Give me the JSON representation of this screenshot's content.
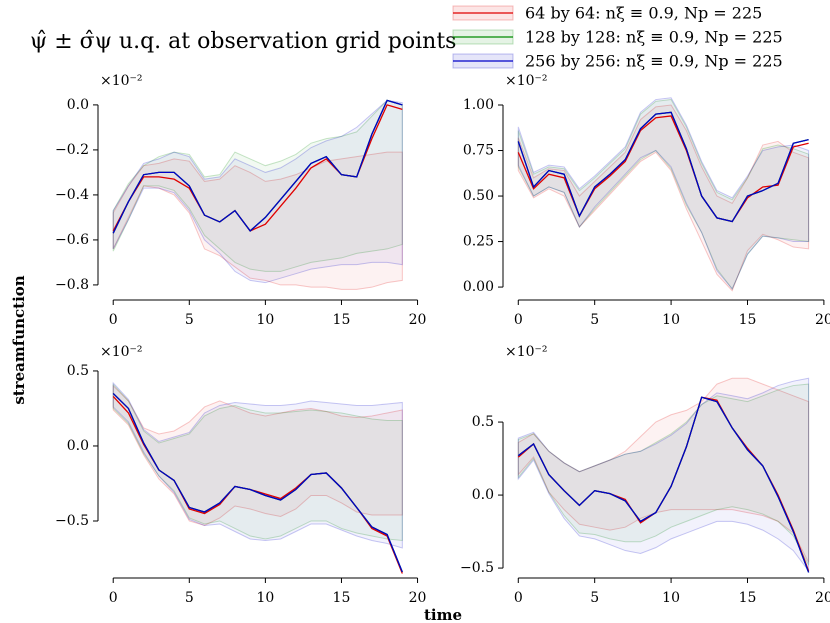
{
  "title": "ψ̂ ± σ̂ψ u.q. at observation grid points",
  "ylabel": "streamfunction",
  "xlabel": "time",
  "legend": [
    "64 by 64: nξ ≡ 0.9, Np = 225",
    "128 by 128: nξ ≡ 0.9, Np = 225",
    "256 by 256: nξ ≡ 0.9, Np = 225"
  ],
  "chart_data": [
    {
      "type": "line",
      "offset_label": "×10⁻²",
      "x": [
        0,
        1,
        2,
        3,
        4,
        5,
        6,
        7,
        8,
        9,
        10,
        11,
        12,
        13,
        14,
        15,
        16,
        17,
        18,
        19
      ],
      "xlim": [
        -1,
        20.95
      ],
      "xticks": [
        0,
        5,
        10,
        15,
        20
      ],
      "ylim": [
        -0.867,
        0.044
      ],
      "yticks": [
        {
          "value": 0.0,
          "label": "0.0"
        },
        {
          "value": -0.2,
          "label": "−0.2"
        },
        {
          "value": -0.4,
          "label": "−0.4"
        },
        {
          "value": -0.6,
          "label": "−0.6"
        },
        {
          "value": -0.8,
          "label": "−0.8"
        }
      ],
      "series": [
        {
          "color": "#e00000",
          "values": [
            -0.56,
            -0.43,
            -0.32,
            -0.32,
            -0.33,
            -0.37,
            -0.49,
            -0.52,
            -0.47,
            -0.56,
            -0.53,
            -0.45,
            -0.37,
            -0.28,
            -0.24,
            -0.31,
            -0.32,
            -0.15,
            0.0,
            -0.02
          ],
          "upper": [
            -0.48,
            -0.36,
            -0.27,
            -0.26,
            -0.24,
            -0.25,
            -0.34,
            -0.33,
            -0.27,
            -0.3,
            -0.34,
            -0.33,
            -0.31,
            -0.28,
            -0.25,
            -0.24,
            -0.23,
            -0.22,
            -0.21,
            -0.21
          ],
          "lower": [
            -0.64,
            -0.5,
            -0.36,
            -0.37,
            -0.4,
            -0.48,
            -0.64,
            -0.67,
            -0.72,
            -0.77,
            -0.78,
            -0.8,
            -0.8,
            -0.81,
            -0.81,
            -0.82,
            -0.82,
            -0.81,
            -0.79,
            -0.78
          ]
        },
        {
          "color": "#008a00",
          "values": [
            -0.57,
            -0.43,
            -0.31,
            -0.3,
            -0.3,
            -0.36,
            -0.49,
            -0.52,
            -0.47,
            -0.56,
            -0.5,
            -0.42,
            -0.34,
            -0.26,
            -0.23,
            -0.31,
            -0.32,
            -0.13,
            0.02,
            0.0
          ],
          "upper": [
            -0.47,
            -0.35,
            -0.27,
            -0.23,
            -0.21,
            -0.22,
            -0.32,
            -0.31,
            -0.21,
            -0.24,
            -0.27,
            -0.25,
            -0.22,
            -0.17,
            -0.15,
            -0.14,
            -0.12,
            -0.05,
            0.02,
            0.0
          ],
          "lower": [
            -0.65,
            -0.51,
            -0.36,
            -0.36,
            -0.38,
            -0.46,
            -0.58,
            -0.64,
            -0.7,
            -0.73,
            -0.74,
            -0.74,
            -0.72,
            -0.7,
            -0.69,
            -0.68,
            -0.66,
            -0.65,
            -0.64,
            -0.62
          ]
        },
        {
          "color": "#0000c8",
          "values": [
            -0.57,
            -0.43,
            -0.31,
            -0.3,
            -0.3,
            -0.36,
            -0.49,
            -0.52,
            -0.47,
            -0.56,
            -0.5,
            -0.42,
            -0.34,
            -0.26,
            -0.23,
            -0.31,
            -0.32,
            -0.13,
            0.02,
            0.0
          ],
          "upper": [
            -0.47,
            -0.36,
            -0.26,
            -0.24,
            -0.21,
            -0.23,
            -0.33,
            -0.32,
            -0.24,
            -0.27,
            -0.3,
            -0.28,
            -0.24,
            -0.19,
            -0.16,
            -0.14,
            -0.1,
            -0.04,
            0.02,
            0.01
          ],
          "lower": [
            -0.64,
            -0.51,
            -0.37,
            -0.37,
            -0.39,
            -0.47,
            -0.6,
            -0.66,
            -0.74,
            -0.78,
            -0.79,
            -0.77,
            -0.75,
            -0.73,
            -0.72,
            -0.71,
            -0.71,
            -0.7,
            -0.7,
            -0.71
          ]
        }
      ]
    },
    {
      "type": "line",
      "offset_label": "×10⁻²",
      "x": [
        0,
        1,
        2,
        3,
        4,
        5,
        6,
        7,
        8,
        9,
        10,
        11,
        12,
        13,
        14,
        15,
        16,
        17,
        18,
        19
      ],
      "xlim": [
        -1,
        20.4
      ],
      "xticks": [
        0,
        5,
        10,
        15,
        20
      ],
      "ylim": [
        -0.071,
        1.055
      ],
      "yticks": [
        {
          "value": 0.0,
          "label": "0.00"
        },
        {
          "value": 0.25,
          "label": "0.25"
        },
        {
          "value": 0.5,
          "label": "0.50"
        },
        {
          "value": 0.75,
          "label": "0.75"
        },
        {
          "value": 1.0,
          "label": "1.00"
        }
      ],
      "series": [
        {
          "color": "#e00000",
          "values": [
            0.74,
            0.54,
            0.62,
            0.6,
            0.39,
            0.54,
            0.61,
            0.69,
            0.86,
            0.93,
            0.94,
            0.75,
            0.5,
            0.38,
            0.36,
            0.49,
            0.55,
            0.56,
            0.77,
            0.79
          ],
          "upper": [
            0.82,
            0.6,
            0.65,
            0.64,
            0.5,
            0.58,
            0.66,
            0.74,
            0.92,
            0.99,
            1.0,
            0.86,
            0.66,
            0.5,
            0.46,
            0.6,
            0.78,
            0.8,
            0.74,
            0.71
          ],
          "lower": [
            0.64,
            0.49,
            0.54,
            0.5,
            0.33,
            0.42,
            0.51,
            0.6,
            0.69,
            0.74,
            0.64,
            0.43,
            0.25,
            0.07,
            -0.02,
            0.2,
            0.29,
            0.26,
            0.22,
            0.21
          ]
        },
        {
          "color": "#008a00",
          "values": [
            0.8,
            0.55,
            0.64,
            0.62,
            0.39,
            0.55,
            0.62,
            0.7,
            0.87,
            0.95,
            0.96,
            0.76,
            0.5,
            0.38,
            0.36,
            0.5,
            0.53,
            0.57,
            0.79,
            0.81
          ],
          "upper": [
            0.86,
            0.62,
            0.66,
            0.65,
            0.53,
            0.6,
            0.68,
            0.76,
            0.95,
            1.02,
            1.03,
            0.88,
            0.68,
            0.52,
            0.48,
            0.6,
            0.76,
            0.78,
            0.76,
            0.73
          ],
          "lower": [
            0.66,
            0.5,
            0.55,
            0.52,
            0.33,
            0.43,
            0.52,
            0.61,
            0.7,
            0.75,
            0.65,
            0.45,
            0.3,
            0.1,
            -0.01,
            0.18,
            0.28,
            0.27,
            0.26,
            0.25
          ]
        },
        {
          "color": "#0000c8",
          "values": [
            0.8,
            0.55,
            0.64,
            0.62,
            0.39,
            0.55,
            0.62,
            0.7,
            0.87,
            0.95,
            0.96,
            0.76,
            0.5,
            0.38,
            0.36,
            0.5,
            0.53,
            0.57,
            0.79,
            0.81
          ],
          "upper": [
            0.88,
            0.63,
            0.67,
            0.66,
            0.54,
            0.61,
            0.69,
            0.77,
            0.96,
            1.03,
            1.04,
            0.89,
            0.69,
            0.53,
            0.49,
            0.61,
            0.75,
            0.77,
            0.78,
            0.75
          ],
          "lower": [
            0.67,
            0.5,
            0.55,
            0.52,
            0.33,
            0.44,
            0.53,
            0.62,
            0.71,
            0.75,
            0.66,
            0.46,
            0.3,
            0.09,
            -0.01,
            0.18,
            0.28,
            0.27,
            0.25,
            0.25
          ]
        }
      ]
    },
    {
      "type": "line",
      "offset_label": "×10⁻²",
      "x": [
        0,
        1,
        2,
        3,
        4,
        5,
        6,
        7,
        8,
        9,
        10,
        11,
        12,
        13,
        14,
        15,
        16,
        17,
        18,
        19
      ],
      "xlim": [
        -1,
        20.95
      ],
      "xticks": [
        0,
        5,
        10,
        15,
        20
      ],
      "ylim": [
        -0.88,
        0.533
      ],
      "yticks": [
        {
          "value": 0.5,
          "label": "0.5"
        },
        {
          "value": 0.0,
          "label": "0.0"
        },
        {
          "value": -0.5,
          "label": "−0.5"
        }
      ],
      "series": [
        {
          "color": "#e00000",
          "values": [
            0.33,
            0.22,
            0.01,
            -0.16,
            -0.23,
            -0.42,
            -0.45,
            -0.39,
            -0.27,
            -0.29,
            -0.32,
            -0.35,
            -0.28,
            -0.19,
            -0.18,
            -0.28,
            -0.41,
            -0.55,
            -0.6,
            -0.85
          ],
          "upper": [
            0.4,
            0.3,
            0.12,
            0.08,
            0.1,
            0.16,
            0.26,
            0.3,
            0.26,
            0.22,
            0.2,
            0.22,
            0.24,
            0.25,
            0.23,
            0.2,
            0.19,
            0.2,
            0.22,
            0.24
          ],
          "lower": [
            0.24,
            0.14,
            -0.06,
            -0.22,
            -0.32,
            -0.5,
            -0.53,
            -0.48,
            -0.4,
            -0.42,
            -0.45,
            -0.47,
            -0.42,
            -0.33,
            -0.33,
            -0.38,
            -0.44,
            -0.46,
            -0.46,
            -0.46
          ]
        },
        {
          "color": "#008a00",
          "values": [
            0.35,
            0.25,
            0.02,
            -0.16,
            -0.23,
            -0.41,
            -0.44,
            -0.38,
            -0.27,
            -0.29,
            -0.33,
            -0.36,
            -0.29,
            -0.19,
            -0.18,
            -0.28,
            -0.41,
            -0.54,
            -0.59,
            -0.84
          ],
          "upper": [
            0.41,
            0.3,
            0.1,
            0.02,
            0.05,
            0.08,
            0.2,
            0.25,
            0.27,
            0.24,
            0.22,
            0.22,
            0.23,
            0.24,
            0.23,
            0.22,
            0.2,
            0.18,
            0.17,
            0.17
          ],
          "lower": [
            0.25,
            0.15,
            -0.05,
            -0.2,
            -0.3,
            -0.48,
            -0.52,
            -0.5,
            -0.55,
            -0.6,
            -0.62,
            -0.6,
            -0.55,
            -0.5,
            -0.5,
            -0.55,
            -0.58,
            -0.6,
            -0.62,
            -0.63
          ]
        },
        {
          "color": "#0000c8",
          "values": [
            0.35,
            0.25,
            0.02,
            -0.16,
            -0.23,
            -0.41,
            -0.44,
            -0.38,
            -0.27,
            -0.29,
            -0.33,
            -0.36,
            -0.29,
            -0.19,
            -0.18,
            -0.28,
            -0.41,
            -0.54,
            -0.59,
            -0.84
          ],
          "upper": [
            0.42,
            0.31,
            0.11,
            0.03,
            0.06,
            0.09,
            0.22,
            0.27,
            0.29,
            0.28,
            0.27,
            0.27,
            0.28,
            0.3,
            0.29,
            0.28,
            0.27,
            0.27,
            0.28,
            0.29
          ],
          "lower": [
            0.26,
            0.16,
            -0.04,
            -0.2,
            -0.31,
            -0.49,
            -0.53,
            -0.52,
            -0.57,
            -0.62,
            -0.63,
            -0.62,
            -0.57,
            -0.52,
            -0.52,
            -0.56,
            -0.6,
            -0.63,
            -0.65,
            -0.68
          ]
        }
      ]
    },
    {
      "type": "line",
      "offset_label": "×10⁻²",
      "x": [
        0,
        1,
        2,
        3,
        4,
        5,
        6,
        7,
        8,
        9,
        10,
        11,
        12,
        13,
        14,
        15,
        16,
        17,
        18,
        19
      ],
      "xlim": [
        -1,
        20.4
      ],
      "xticks": [
        0,
        5,
        10,
        15,
        20
      ],
      "ylim": [
        -0.568,
        0.884
      ],
      "yticks": [
        {
          "value": 0.5,
          "label": "0.5"
        },
        {
          "value": 0.0,
          "label": "0.0"
        },
        {
          "value": -0.5,
          "label": "−0.5"
        }
      ],
      "series": [
        {
          "color": "#e00000",
          "values": [
            0.26,
            0.35,
            0.14,
            0.03,
            -0.07,
            0.03,
            0.01,
            -0.03,
            -0.19,
            -0.12,
            0.06,
            0.33,
            0.67,
            0.65,
            0.46,
            0.32,
            0.2,
            0.0,
            -0.24,
            -0.52
          ],
          "upper": [
            0.36,
            0.42,
            0.3,
            0.22,
            0.16,
            0.2,
            0.24,
            0.3,
            0.4,
            0.5,
            0.55,
            0.58,
            0.64,
            0.76,
            0.8,
            0.8,
            0.76,
            0.72,
            0.68,
            0.64
          ],
          "lower": [
            0.14,
            0.26,
            0.02,
            -0.1,
            -0.2,
            -0.22,
            -0.24,
            -0.22,
            -0.16,
            -0.12,
            -0.1,
            -0.1,
            -0.1,
            -0.1,
            -0.1,
            -0.12,
            -0.14,
            -0.18,
            -0.26,
            -0.46
          ]
        },
        {
          "color": "#008a00",
          "values": [
            0.27,
            0.35,
            0.14,
            0.03,
            -0.07,
            0.03,
            0.01,
            -0.04,
            -0.18,
            -0.12,
            0.06,
            0.33,
            0.67,
            0.64,
            0.46,
            0.31,
            0.2,
            -0.01,
            -0.25,
            -0.53
          ],
          "upper": [
            0.38,
            0.42,
            0.3,
            0.22,
            0.16,
            0.2,
            0.24,
            0.28,
            0.3,
            0.36,
            0.42,
            0.5,
            0.62,
            0.68,
            0.66,
            0.64,
            0.68,
            0.72,
            0.75,
            0.76
          ],
          "lower": [
            0.12,
            0.25,
            0.02,
            -0.14,
            -0.26,
            -0.27,
            -0.3,
            -0.32,
            -0.32,
            -0.28,
            -0.22,
            -0.18,
            -0.14,
            -0.1,
            -0.08,
            -0.1,
            -0.13,
            -0.18,
            -0.28,
            -0.48
          ]
        },
        {
          "color": "#0000c8",
          "values": [
            0.27,
            0.35,
            0.14,
            0.03,
            -0.07,
            0.03,
            0.01,
            -0.04,
            -0.18,
            -0.12,
            0.06,
            0.33,
            0.67,
            0.64,
            0.46,
            0.31,
            0.2,
            -0.01,
            -0.25,
            -0.53
          ],
          "upper": [
            0.39,
            0.43,
            0.3,
            0.22,
            0.16,
            0.2,
            0.24,
            0.28,
            0.3,
            0.35,
            0.41,
            0.49,
            0.62,
            0.7,
            0.68,
            0.66,
            0.7,
            0.75,
            0.78,
            0.8
          ],
          "lower": [
            0.11,
            0.24,
            0.01,
            -0.16,
            -0.28,
            -0.3,
            -0.34,
            -0.38,
            -0.4,
            -0.36,
            -0.3,
            -0.26,
            -0.22,
            -0.18,
            -0.18,
            -0.2,
            -0.24,
            -0.3,
            -0.38,
            -0.52
          ]
        }
      ]
    }
  ]
}
